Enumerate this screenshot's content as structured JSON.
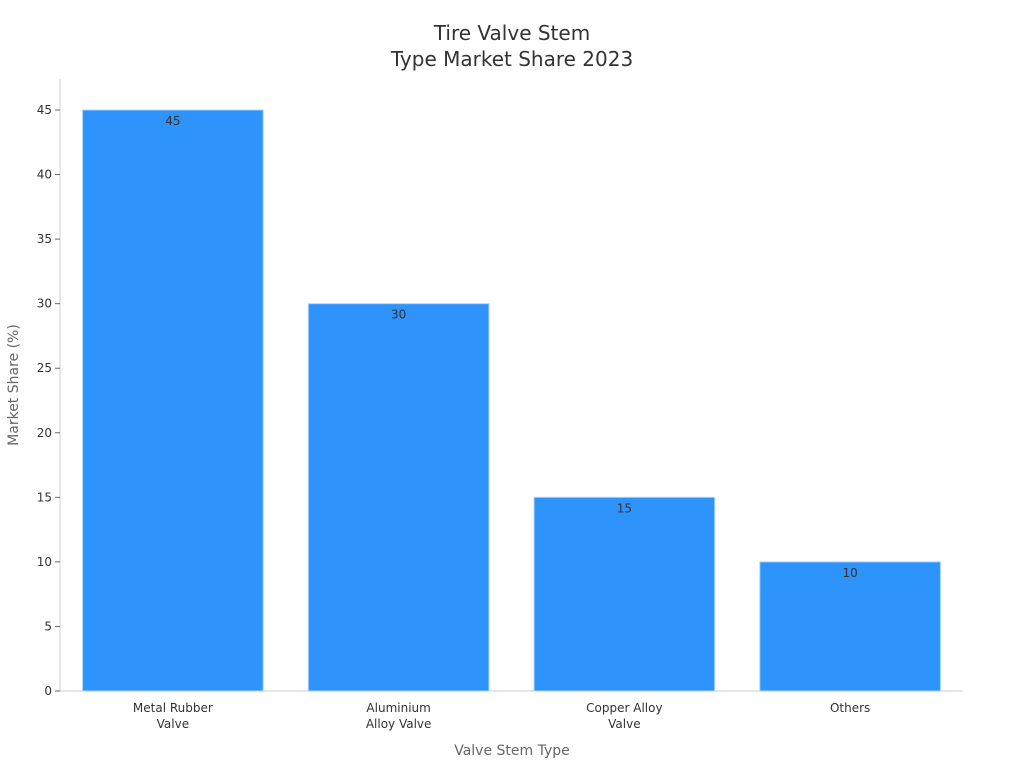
{
  "chart_data": {
    "type": "bar",
    "title": [
      "Tire Valve Stem",
      "Type Market Share 2023"
    ],
    "xlabel": "Valve Stem Type",
    "ylabel": "Market Share (%)",
    "categories": [
      [
        "Metal Rubber",
        "Valve"
      ],
      [
        "Aluminium",
        "Alloy Valve"
      ],
      [
        "Copper Alloy",
        "Valve"
      ],
      [
        "Others"
      ]
    ],
    "values": [
      45,
      30,
      15,
      10
    ],
    "data_labels": [
      "45",
      "30",
      "15",
      "10"
    ],
    "ylim": [
      0,
      47.4
    ],
    "yticks": [
      0,
      5,
      10,
      15,
      20,
      25,
      30,
      35,
      40,
      45
    ],
    "grid": false,
    "colors": {
      "bar": "#2E93FA",
      "bar_edge": "#A8D4FF",
      "axis": "#cccccc",
      "text": "#333333",
      "label": "#666666"
    }
  }
}
